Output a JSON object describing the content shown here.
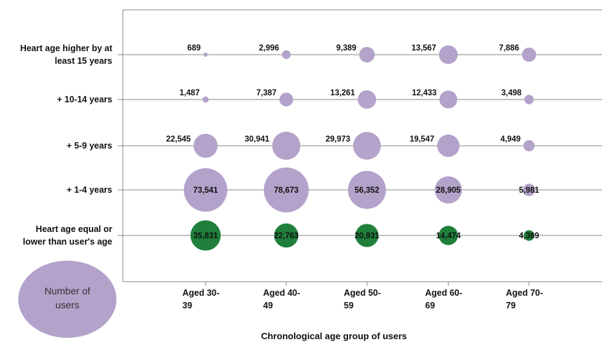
{
  "chart_data": {
    "type": "bubble",
    "title": "",
    "xlabel": "Chronological age group of users",
    "ylabel": "",
    "categories": [
      "Aged 30-39",
      "Aged 40-49",
      "Aged 50-59",
      "Aged 60-69",
      "Aged 70-79"
    ],
    "x_tick_lines": [
      [
        "Aged 30-",
        "39"
      ],
      [
        "Aged 40-",
        "49"
      ],
      [
        "Aged 50-",
        "59"
      ],
      [
        "Aged 60-",
        "69"
      ],
      [
        "Aged 70-",
        "79"
      ]
    ],
    "rows": [
      {
        "label_lines": [
          "Heart  age higher by at",
          "least 15 years"
        ],
        "values": [
          689,
          2996,
          9389,
          13567,
          7886
        ],
        "labels": [
          "689",
          "2,996",
          "9,389",
          "13,567",
          "7,886"
        ],
        "color": "#b3a2c9",
        "label_position": "left"
      },
      {
        "label_lines": [
          "+ 10-14 years"
        ],
        "values": [
          1487,
          7387,
          13261,
          12433,
          3498
        ],
        "labels": [
          "1,487",
          "7,387",
          "13,261",
          "12,433",
          "3,498"
        ],
        "color": "#b3a2c9",
        "label_position": "left"
      },
      {
        "label_lines": [
          "+ 5-9 years"
        ],
        "values": [
          22545,
          30941,
          29973,
          19547,
          4949
        ],
        "labels": [
          "22,545",
          "30,941",
          "29,973",
          "19,547",
          "4,949"
        ],
        "color": "#b3a2c9",
        "label_position": "left"
      },
      {
        "label_lines": [
          "+ 1-4 years"
        ],
        "values": [
          73541,
          78673,
          56352,
          28905,
          5981
        ],
        "labels": [
          "73,541",
          "78,673",
          "56,352",
          "28,905",
          "5,981"
        ],
        "color": "#b3a2c9",
        "label_position": "center"
      },
      {
        "label_lines": [
          "Heart age equal or",
          "lower than user's age"
        ],
        "values": [
          35831,
          22763,
          20931,
          14474,
          4369
        ],
        "labels": [
          "35,831",
          "22,763",
          "20,931",
          "14,474",
          "4,369"
        ],
        "color": "#1f7f3b",
        "label_position": "center"
      }
    ],
    "legend": {
      "label_lines": [
        "Number of",
        "users"
      ],
      "color": "#b3a2c9"
    },
    "grid": true
  }
}
